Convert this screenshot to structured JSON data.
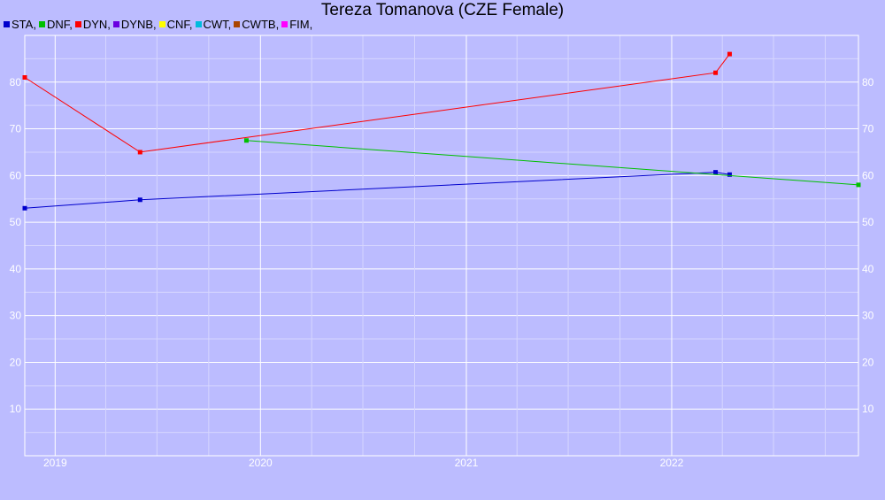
{
  "chart_data": {
    "type": "line",
    "title": "Tereza Tomanova (CZE Female)",
    "xlabel": "",
    "ylabel": "",
    "x_range": [
      "2018-11-08",
      "2022-11-29"
    ],
    "ylim": [
      0,
      90
    ],
    "x_ticks": [
      "2019",
      "2020",
      "2021",
      "2022"
    ],
    "y_ticks": [
      10,
      20,
      30,
      40,
      50,
      60,
      70,
      80
    ],
    "y_axis_labels_both_sides": true,
    "grid": true,
    "legend_position": "top-left",
    "legend": [
      {
        "name": "STA,",
        "color": "#0000cc"
      },
      {
        "name": "DNF,",
        "color": "#00c000"
      },
      {
        "name": "DYN,",
        "color": "#ff0000"
      },
      {
        "name": "DYNB,",
        "color": "#6a00e0"
      },
      {
        "name": "CNF,",
        "color": "#ffff00"
      },
      {
        "name": "CWT,",
        "color": "#00bbdd"
      },
      {
        "name": "CWTB,",
        "color": "#aa4400"
      },
      {
        "name": "FIM,",
        "color": "#ff00ff"
      }
    ],
    "series": [
      {
        "name": "STA",
        "color": "#0000cc",
        "points": [
          {
            "x": "2018-11-08",
            "y": 53
          },
          {
            "x": "2019-06-01",
            "y": 54.8
          },
          {
            "x": "2022-03-20",
            "y": 60.7
          },
          {
            "x": "2022-04-14",
            "y": 60.2
          }
        ]
      },
      {
        "name": "DNF",
        "color": "#00c000",
        "points": [
          {
            "x": "2019-12-07",
            "y": 67.5
          },
          {
            "x": "2022-11-29",
            "y": 58
          }
        ]
      },
      {
        "name": "DYN",
        "color": "#ff0000",
        "points": [
          {
            "x": "2018-11-08",
            "y": 81
          },
          {
            "x": "2019-06-01",
            "y": 65
          },
          {
            "x": "2022-03-20",
            "y": 82
          },
          {
            "x": "2022-04-14",
            "y": 86
          }
        ]
      }
    ]
  }
}
